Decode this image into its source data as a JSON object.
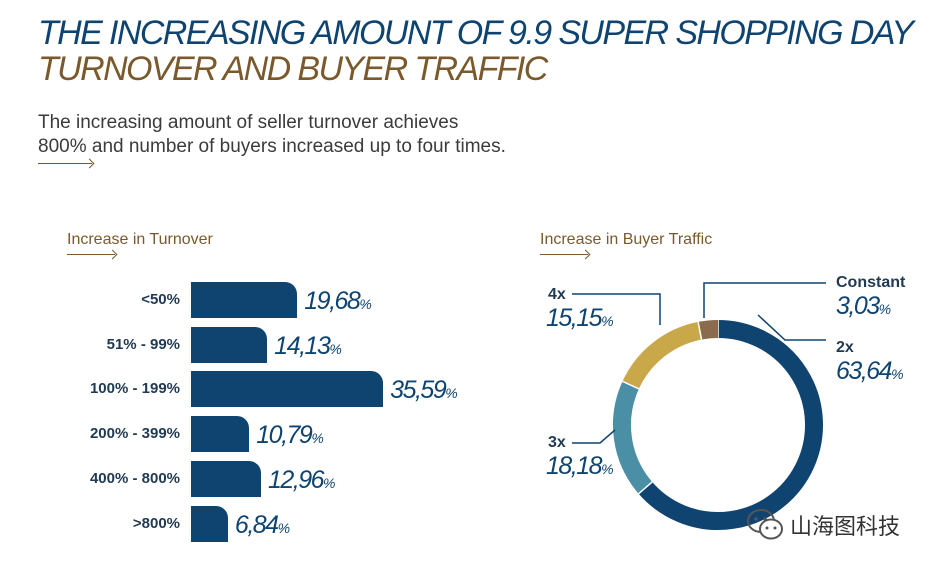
{
  "header": {
    "title_line1": "THE INCREASING AMOUNT OF 9.9 SUPER SHOPPING DAY",
    "title_line2": "TURNOVER AND BUYER TRAFFIC",
    "subtitle_line1": "The increasing amount of seller turnover achieves",
    "subtitle_line2": "800% and number of buyers increased up to four times."
  },
  "colors": {
    "navy": "#0f4470",
    "brown": "#7a5a2c",
    "teal": "#4a8fa6",
    "gold": "#c9a84a",
    "constant": "#8a6b4e"
  },
  "watermark": {
    "text": "山海图科技",
    "icon": "wechat-icon"
  },
  "chart_data": [
    {
      "type": "bar",
      "orientation": "horizontal",
      "title": "Increase in Turnover",
      "categories": [
        "<50%",
        "51% - 99%",
        "100% - 199%",
        "200% - 399%",
        "400% - 800%",
        ">800%"
      ],
      "values": [
        19.68,
        14.13,
        35.59,
        10.79,
        12.96,
        6.84
      ],
      "value_labels": [
        "19,68",
        "14,13",
        "35,59",
        "10,79",
        "12,96",
        "6,84"
      ],
      "unit": "%"
    },
    {
      "type": "pie",
      "style": "donut",
      "title": "Increase in Buyer Traffic",
      "unit": "%",
      "slices": [
        {
          "name": "2x",
          "value": 63.64,
          "label": "63,64",
          "color": "#0f4470"
        },
        {
          "name": "3x",
          "value": 18.18,
          "label": "18,18",
          "color": "#4a8fa6"
        },
        {
          "name": "4x",
          "value": 15.15,
          "label": "15,15",
          "color": "#c9a84a"
        },
        {
          "name": "Constant",
          "value": 3.03,
          "label": "3,03",
          "color": "#8a6b4e"
        }
      ]
    }
  ]
}
